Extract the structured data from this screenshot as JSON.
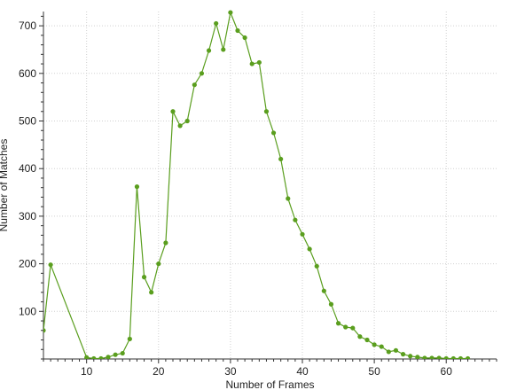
{
  "chart_data": {
    "type": "line",
    "title": "",
    "xlabel": "Number of Frames",
    "ylabel": "Number of Matches",
    "xlim": [
      4,
      67
    ],
    "ylim": [
      0,
      730
    ],
    "xticks": [
      10,
      20,
      30,
      40,
      50,
      60
    ],
    "yticks": [
      100,
      200,
      300,
      400,
      500,
      600,
      700
    ],
    "grid": true,
    "legend": "none",
    "series": [
      {
        "color": "#5a9e1e",
        "marker": "circle",
        "points": [
          [
            4,
            60
          ],
          [
            5,
            198
          ],
          [
            10,
            3
          ],
          [
            11,
            1
          ],
          [
            12,
            1
          ],
          [
            13,
            4
          ],
          [
            14,
            9
          ],
          [
            15,
            12
          ],
          [
            16,
            42
          ],
          [
            17,
            362
          ],
          [
            18,
            172
          ],
          [
            19,
            140
          ],
          [
            20,
            200
          ],
          [
            21,
            244
          ],
          [
            22,
            520
          ],
          [
            23,
            490
          ],
          [
            24,
            500
          ],
          [
            25,
            576
          ],
          [
            26,
            600
          ],
          [
            27,
            648
          ],
          [
            28,
            705
          ],
          [
            29,
            650
          ],
          [
            30,
            728
          ],
          [
            31,
            690
          ],
          [
            32,
            675
          ],
          [
            33,
            620
          ],
          [
            34,
            623
          ],
          [
            35,
            520
          ],
          [
            36,
            475
          ],
          [
            37,
            420
          ],
          [
            38,
            337
          ],
          [
            39,
            292
          ],
          [
            40,
            262
          ],
          [
            41,
            231
          ],
          [
            42,
            195
          ],
          [
            43,
            143
          ],
          [
            44,
            115
          ],
          [
            45,
            75
          ],
          [
            46,
            67
          ],
          [
            47,
            65
          ],
          [
            48,
            47
          ],
          [
            49,
            40
          ],
          [
            50,
            30
          ],
          [
            51,
            26
          ],
          [
            52,
            15
          ],
          [
            53,
            18
          ],
          [
            54,
            10
          ],
          [
            55,
            6
          ],
          [
            56,
            4
          ],
          [
            57,
            2
          ],
          [
            58,
            2
          ],
          [
            59,
            2
          ],
          [
            60,
            1
          ],
          [
            61,
            1
          ],
          [
            62,
            1
          ],
          [
            63,
            1
          ]
        ]
      }
    ]
  }
}
